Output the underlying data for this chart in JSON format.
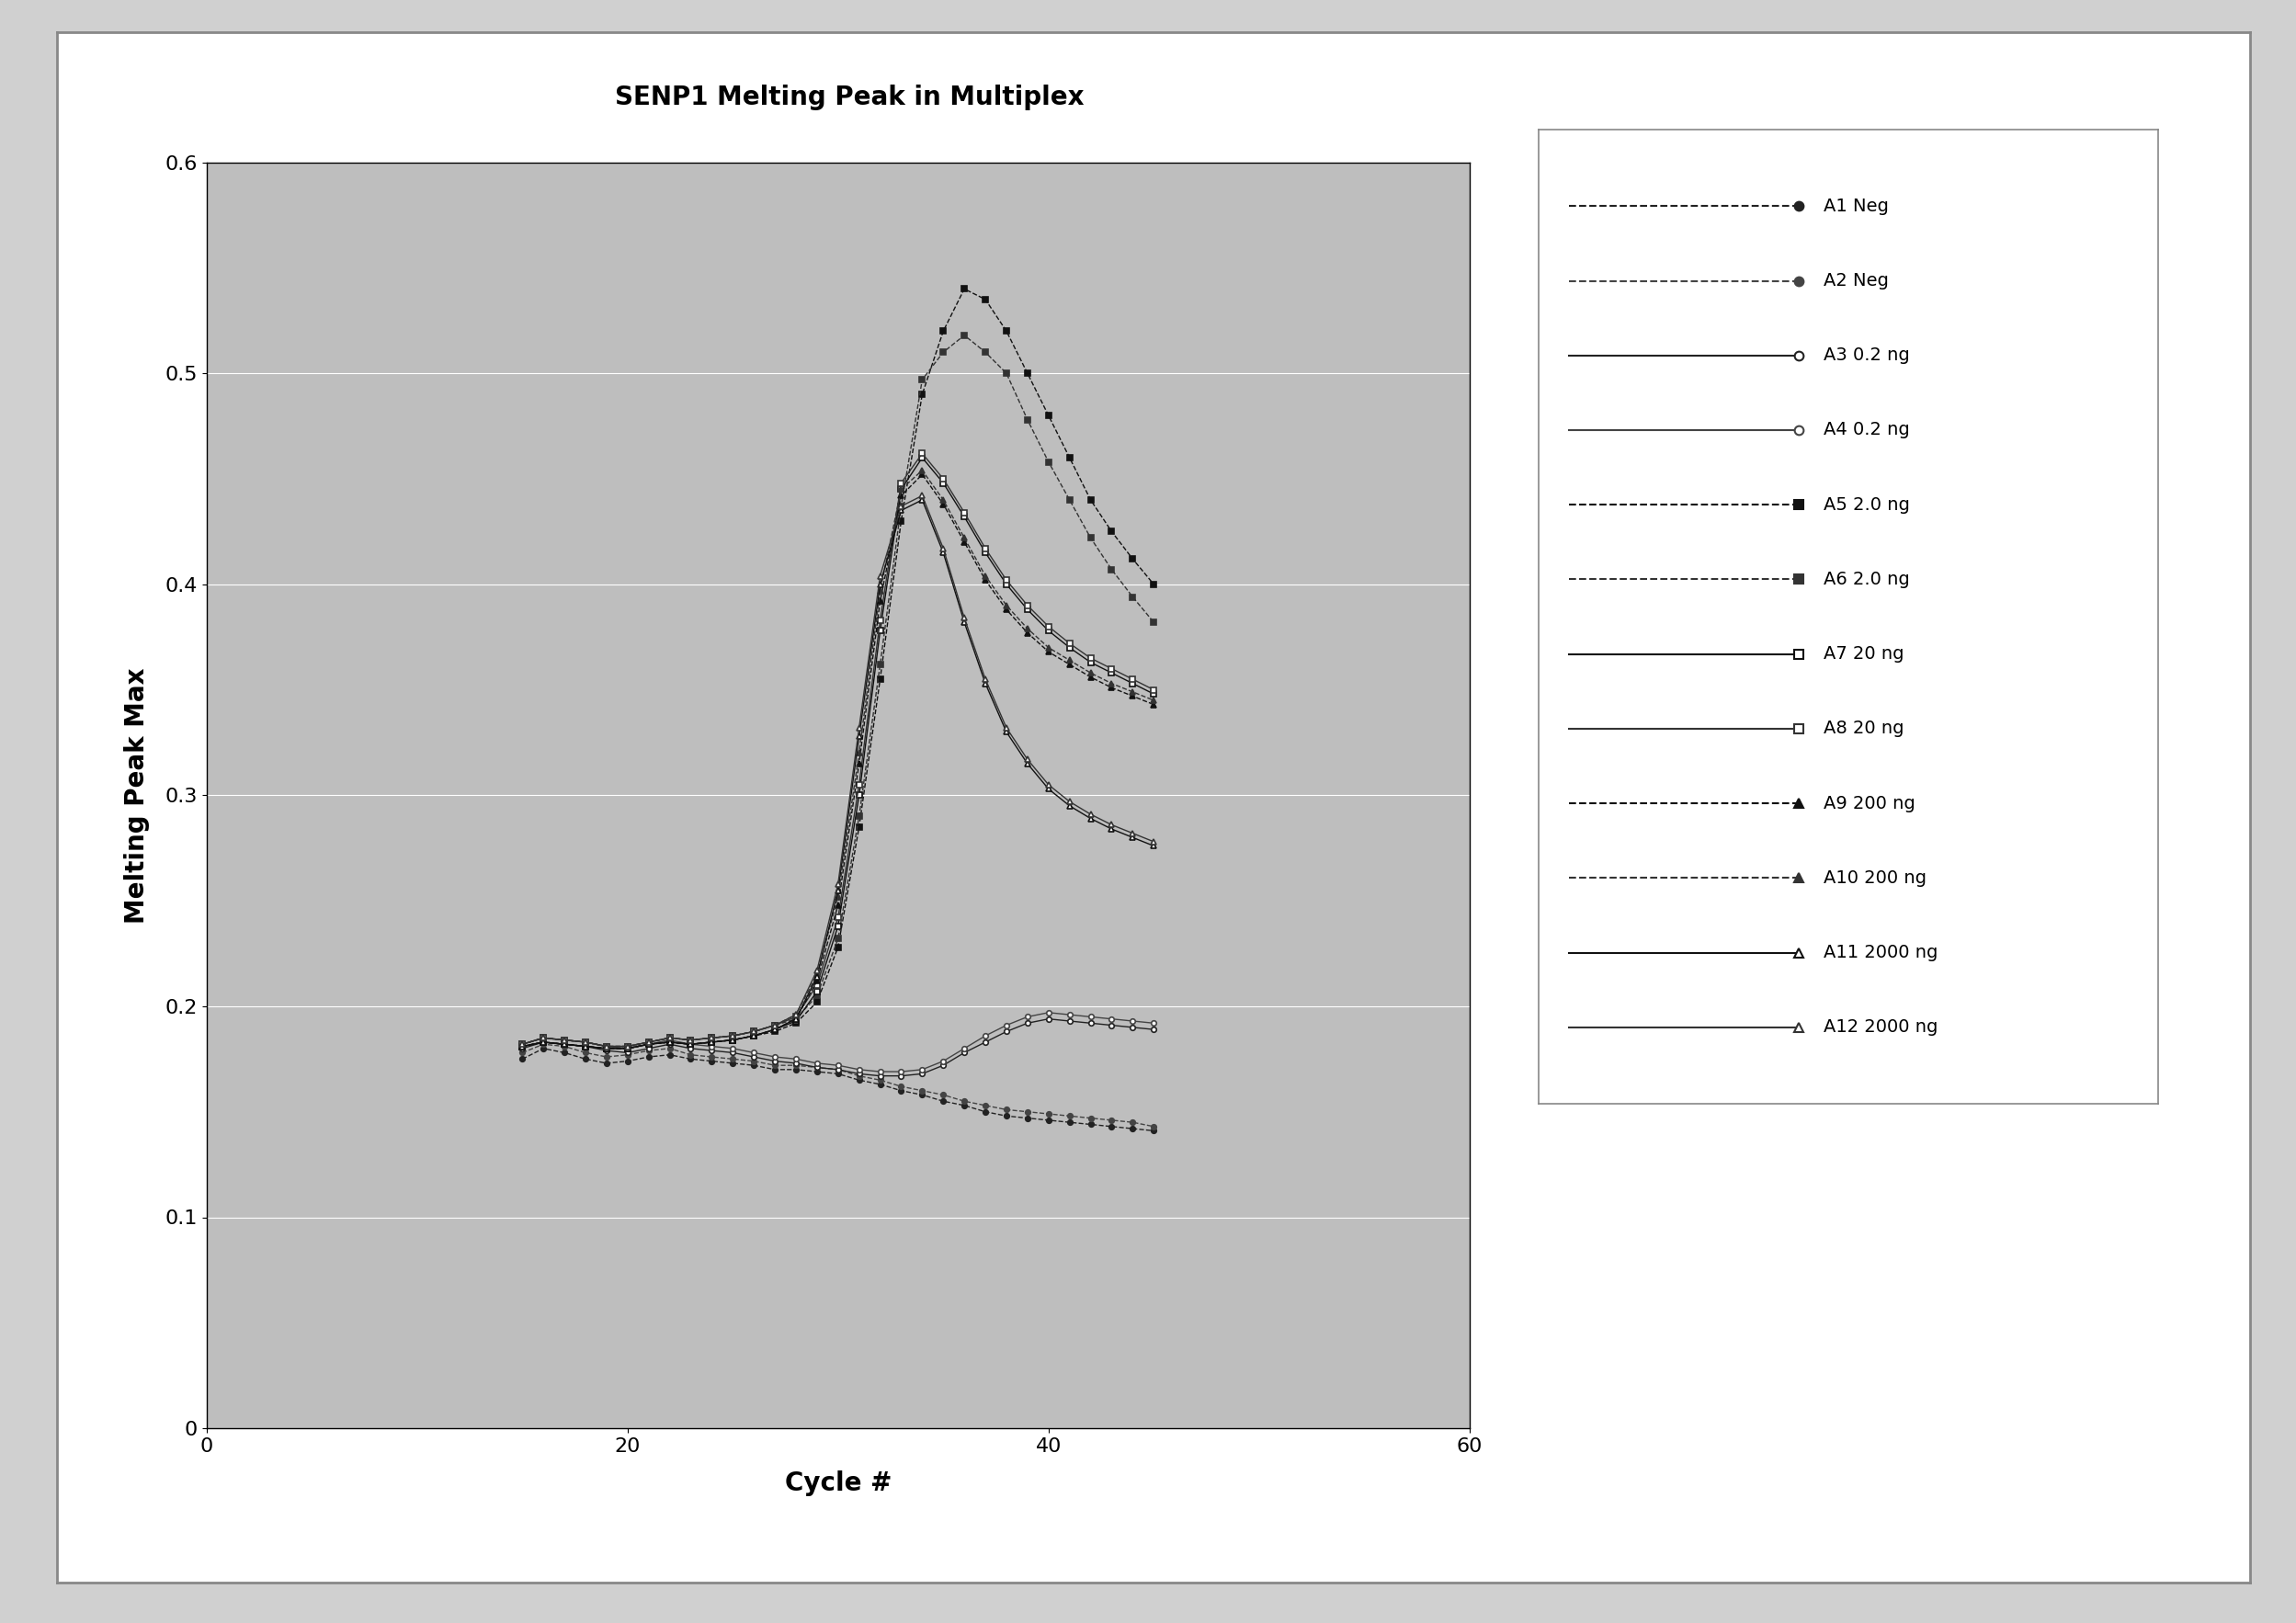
{
  "title": "SENP1 Melting Peak in Multiplex",
  "xlabel": "Cycle #",
  "ylabel": "Melting Peak Max",
  "xlim": [
    0,
    60
  ],
  "ylim": [
    0,
    0.6
  ],
  "xticks": [
    0,
    20,
    40,
    60
  ],
  "yticks": [
    0,
    0.1,
    0.2,
    0.3,
    0.4,
    0.5,
    0.6
  ],
  "plot_bg": "#BEBEBE",
  "fig_bg": "#D8D8D8",
  "outer_bg": "#F0F0F0",
  "series": [
    {
      "label": "A1 Neg",
      "marker": "o",
      "fillstyle": "full",
      "linestyle": "--",
      "color": "#222222",
      "x": [
        15,
        16,
        17,
        18,
        19,
        20,
        21,
        22,
        23,
        24,
        25,
        26,
        27,
        28,
        29,
        30,
        31,
        32,
        33,
        34,
        35,
        36,
        37,
        38,
        39,
        40,
        41,
        42,
        43,
        44,
        45
      ],
      "y": [
        0.175,
        0.18,
        0.178,
        0.175,
        0.173,
        0.174,
        0.176,
        0.177,
        0.175,
        0.174,
        0.173,
        0.172,
        0.17,
        0.17,
        0.169,
        0.168,
        0.165,
        0.163,
        0.16,
        0.158,
        0.155,
        0.153,
        0.15,
        0.148,
        0.147,
        0.146,
        0.145,
        0.144,
        0.143,
        0.142,
        0.141
      ]
    },
    {
      "label": "A2 Neg",
      "marker": "o",
      "fillstyle": "full",
      "linestyle": "--",
      "color": "#444444",
      "x": [
        15,
        16,
        17,
        18,
        19,
        20,
        21,
        22,
        23,
        24,
        25,
        26,
        27,
        28,
        29,
        30,
        31,
        32,
        33,
        34,
        35,
        36,
        37,
        38,
        39,
        40,
        41,
        42,
        43,
        44,
        45
      ],
      "y": [
        0.178,
        0.182,
        0.181,
        0.178,
        0.176,
        0.177,
        0.179,
        0.18,
        0.177,
        0.176,
        0.175,
        0.174,
        0.172,
        0.172,
        0.171,
        0.17,
        0.167,
        0.165,
        0.162,
        0.16,
        0.158,
        0.155,
        0.153,
        0.151,
        0.15,
        0.149,
        0.148,
        0.147,
        0.146,
        0.145,
        0.143
      ]
    },
    {
      "label": "A3 0.2 ng",
      "marker": "o",
      "fillstyle": "none",
      "linestyle": "-",
      "color": "#222222",
      "x": [
        15,
        16,
        17,
        18,
        19,
        20,
        21,
        22,
        23,
        24,
        25,
        26,
        27,
        28,
        29,
        30,
        31,
        32,
        33,
        34,
        35,
        36,
        37,
        38,
        39,
        40,
        41,
        42,
        43,
        44,
        45
      ],
      "y": [
        0.18,
        0.183,
        0.182,
        0.181,
        0.179,
        0.178,
        0.18,
        0.182,
        0.18,
        0.179,
        0.178,
        0.176,
        0.174,
        0.173,
        0.171,
        0.17,
        0.168,
        0.167,
        0.167,
        0.168,
        0.172,
        0.178,
        0.183,
        0.188,
        0.192,
        0.194,
        0.193,
        0.192,
        0.191,
        0.19,
        0.189
      ]
    },
    {
      "label": "A4 0.2 ng",
      "marker": "o",
      "fillstyle": "none",
      "linestyle": "-",
      "color": "#444444",
      "x": [
        15,
        16,
        17,
        18,
        19,
        20,
        21,
        22,
        23,
        24,
        25,
        26,
        27,
        28,
        29,
        30,
        31,
        32,
        33,
        34,
        35,
        36,
        37,
        38,
        39,
        40,
        41,
        42,
        43,
        44,
        45
      ],
      "y": [
        0.182,
        0.185,
        0.184,
        0.183,
        0.181,
        0.18,
        0.182,
        0.184,
        0.182,
        0.181,
        0.18,
        0.178,
        0.176,
        0.175,
        0.173,
        0.172,
        0.17,
        0.169,
        0.169,
        0.17,
        0.174,
        0.18,
        0.186,
        0.191,
        0.195,
        0.197,
        0.196,
        0.195,
        0.194,
        0.193,
        0.192
      ]
    },
    {
      "label": "A5 2.0 ng",
      "marker": "s",
      "fillstyle": "full",
      "linestyle": "--",
      "color": "#111111",
      "x": [
        15,
        16,
        17,
        18,
        19,
        20,
        21,
        22,
        23,
        24,
        25,
        26,
        27,
        28,
        29,
        30,
        31,
        32,
        33,
        34,
        35,
        36,
        37,
        38,
        39,
        40,
        41,
        42,
        43,
        44,
        45
      ],
      "y": [
        0.181,
        0.183,
        0.182,
        0.181,
        0.18,
        0.18,
        0.182,
        0.183,
        0.182,
        0.183,
        0.184,
        0.186,
        0.188,
        0.192,
        0.202,
        0.228,
        0.285,
        0.355,
        0.43,
        0.49,
        0.52,
        0.54,
        0.535,
        0.52,
        0.5,
        0.48,
        0.46,
        0.44,
        0.425,
        0.412,
        0.4
      ]
    },
    {
      "label": "A6 2.0 ng",
      "marker": "s",
      "fillstyle": "full",
      "linestyle": "--",
      "color": "#333333",
      "x": [
        15,
        16,
        17,
        18,
        19,
        20,
        21,
        22,
        23,
        24,
        25,
        26,
        27,
        28,
        29,
        30,
        31,
        32,
        33,
        34,
        35,
        36,
        37,
        38,
        39,
        40,
        41,
        42,
        43,
        44,
        45
      ],
      "y": [
        0.182,
        0.185,
        0.184,
        0.183,
        0.181,
        0.181,
        0.183,
        0.185,
        0.184,
        0.185,
        0.186,
        0.188,
        0.191,
        0.194,
        0.205,
        0.232,
        0.29,
        0.362,
        0.437,
        0.497,
        0.51,
        0.518,
        0.51,
        0.5,
        0.478,
        0.458,
        0.44,
        0.422,
        0.407,
        0.394,
        0.382
      ]
    },
    {
      "label": "A7 20 ng",
      "marker": "s",
      "fillstyle": "none",
      "linestyle": "-",
      "color": "#111111",
      "x": [
        15,
        16,
        17,
        18,
        19,
        20,
        21,
        22,
        23,
        24,
        25,
        26,
        27,
        28,
        29,
        30,
        31,
        32,
        33,
        34,
        35,
        36,
        37,
        38,
        39,
        40,
        41,
        42,
        43,
        44,
        45
      ],
      "y": [
        0.181,
        0.183,
        0.182,
        0.181,
        0.18,
        0.18,
        0.182,
        0.183,
        0.182,
        0.183,
        0.184,
        0.186,
        0.189,
        0.193,
        0.207,
        0.238,
        0.3,
        0.378,
        0.445,
        0.46,
        0.448,
        0.432,
        0.415,
        0.4,
        0.388,
        0.378,
        0.37,
        0.363,
        0.358,
        0.353,
        0.348
      ]
    },
    {
      "label": "A8 20 ng",
      "marker": "s",
      "fillstyle": "none",
      "linestyle": "-",
      "color": "#333333",
      "x": [
        15,
        16,
        17,
        18,
        19,
        20,
        21,
        22,
        23,
        24,
        25,
        26,
        27,
        28,
        29,
        30,
        31,
        32,
        33,
        34,
        35,
        36,
        37,
        38,
        39,
        40,
        41,
        42,
        43,
        44,
        45
      ],
      "y": [
        0.182,
        0.185,
        0.184,
        0.183,
        0.181,
        0.181,
        0.183,
        0.185,
        0.184,
        0.185,
        0.186,
        0.188,
        0.191,
        0.195,
        0.21,
        0.242,
        0.305,
        0.383,
        0.448,
        0.462,
        0.45,
        0.434,
        0.417,
        0.402,
        0.39,
        0.38,
        0.372,
        0.365,
        0.36,
        0.355,
        0.35
      ]
    },
    {
      "label": "A9 200 ng",
      "marker": "^",
      "fillstyle": "full",
      "linestyle": "--",
      "color": "#111111",
      "x": [
        15,
        16,
        17,
        18,
        19,
        20,
        21,
        22,
        23,
        24,
        25,
        26,
        27,
        28,
        29,
        30,
        31,
        32,
        33,
        34,
        35,
        36,
        37,
        38,
        39,
        40,
        41,
        42,
        43,
        44,
        45
      ],
      "y": [
        0.181,
        0.183,
        0.182,
        0.181,
        0.18,
        0.18,
        0.182,
        0.183,
        0.182,
        0.183,
        0.184,
        0.186,
        0.189,
        0.194,
        0.212,
        0.248,
        0.315,
        0.392,
        0.442,
        0.452,
        0.438,
        0.42,
        0.402,
        0.388,
        0.377,
        0.368,
        0.362,
        0.356,
        0.351,
        0.347,
        0.343
      ]
    },
    {
      "label": "A10 200 ng",
      "marker": "^",
      "fillstyle": "full",
      "linestyle": "--",
      "color": "#333333",
      "x": [
        15,
        16,
        17,
        18,
        19,
        20,
        21,
        22,
        23,
        24,
        25,
        26,
        27,
        28,
        29,
        30,
        31,
        32,
        33,
        34,
        35,
        36,
        37,
        38,
        39,
        40,
        41,
        42,
        43,
        44,
        45
      ],
      "y": [
        0.182,
        0.185,
        0.184,
        0.183,
        0.181,
        0.181,
        0.183,
        0.185,
        0.184,
        0.185,
        0.186,
        0.188,
        0.191,
        0.196,
        0.215,
        0.252,
        0.32,
        0.397,
        0.445,
        0.454,
        0.44,
        0.422,
        0.404,
        0.39,
        0.379,
        0.37,
        0.364,
        0.358,
        0.353,
        0.349,
        0.345
      ]
    },
    {
      "label": "A11 2000 ng",
      "marker": "^",
      "fillstyle": "none",
      "linestyle": "-",
      "color": "#111111",
      "x": [
        15,
        16,
        17,
        18,
        19,
        20,
        21,
        22,
        23,
        24,
        25,
        26,
        27,
        28,
        29,
        30,
        31,
        32,
        33,
        34,
        35,
        36,
        37,
        38,
        39,
        40,
        41,
        42,
        43,
        44,
        45
      ],
      "y": [
        0.181,
        0.183,
        0.182,
        0.181,
        0.18,
        0.18,
        0.182,
        0.183,
        0.182,
        0.183,
        0.184,
        0.186,
        0.189,
        0.194,
        0.214,
        0.255,
        0.328,
        0.4,
        0.435,
        0.44,
        0.415,
        0.382,
        0.353,
        0.33,
        0.315,
        0.303,
        0.295,
        0.289,
        0.284,
        0.28,
        0.276
      ]
    },
    {
      "label": "A12 2000 ng",
      "marker": "^",
      "fillstyle": "none",
      "linestyle": "-",
      "color": "#333333",
      "x": [
        15,
        16,
        17,
        18,
        19,
        20,
        21,
        22,
        23,
        24,
        25,
        26,
        27,
        28,
        29,
        30,
        31,
        32,
        33,
        34,
        35,
        36,
        37,
        38,
        39,
        40,
        41,
        42,
        43,
        44,
        45
      ],
      "y": [
        0.182,
        0.185,
        0.184,
        0.183,
        0.181,
        0.181,
        0.183,
        0.185,
        0.184,
        0.185,
        0.186,
        0.188,
        0.191,
        0.196,
        0.217,
        0.258,
        0.332,
        0.404,
        0.437,
        0.442,
        0.417,
        0.384,
        0.355,
        0.332,
        0.317,
        0.305,
        0.297,
        0.291,
        0.286,
        0.282,
        0.278
      ]
    }
  ]
}
